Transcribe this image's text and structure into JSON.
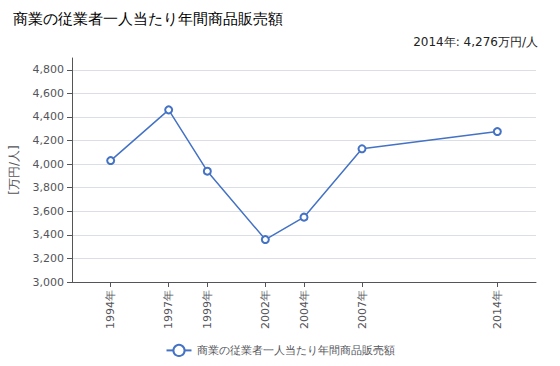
{
  "chart_data": {
    "type": "line",
    "title": "商業の従業者一人当たり年間商品販売額",
    "ylabel": "[万円/人]",
    "annotation": "2014年: 4,276万円/人",
    "x": [
      1994,
      1997,
      1999,
      2002,
      2004,
      2007,
      2014
    ],
    "series": [
      {
        "name": "商業の従業者一人当たり年間商品販売額",
        "color": "#4472C4",
        "values": [
          4030,
          4460,
          3940,
          3360,
          3550,
          4130,
          4276
        ]
      }
    ],
    "xlim": [
      1992,
      2016
    ],
    "xticks": [
      {
        "value": 1994,
        "label": "1994年"
      },
      {
        "value": 1997,
        "label": "1997年"
      },
      {
        "value": 1999,
        "label": "1999年"
      },
      {
        "value": 2002,
        "label": "2002年"
      },
      {
        "value": 2004,
        "label": "2004年"
      },
      {
        "value": 2007,
        "label": "2007年"
      },
      {
        "value": 2014,
        "label": "2014年"
      }
    ],
    "ylim": [
      3000,
      4900
    ],
    "yticks": [
      {
        "value": 3000,
        "label": "3,000"
      },
      {
        "value": 3200,
        "label": "3,200"
      },
      {
        "value": 3400,
        "label": "3,400"
      },
      {
        "value": 3600,
        "label": "3,600"
      },
      {
        "value": 3800,
        "label": "3,800"
      },
      {
        "value": 4000,
        "label": "4,000"
      },
      {
        "value": 4200,
        "label": "4,200"
      },
      {
        "value": 4400,
        "label": "4,400"
      },
      {
        "value": 4600,
        "label": "4,600"
      },
      {
        "value": 4800,
        "label": "4,800"
      }
    ],
    "grid": true,
    "legend": "bottom",
    "marker": "circle"
  }
}
